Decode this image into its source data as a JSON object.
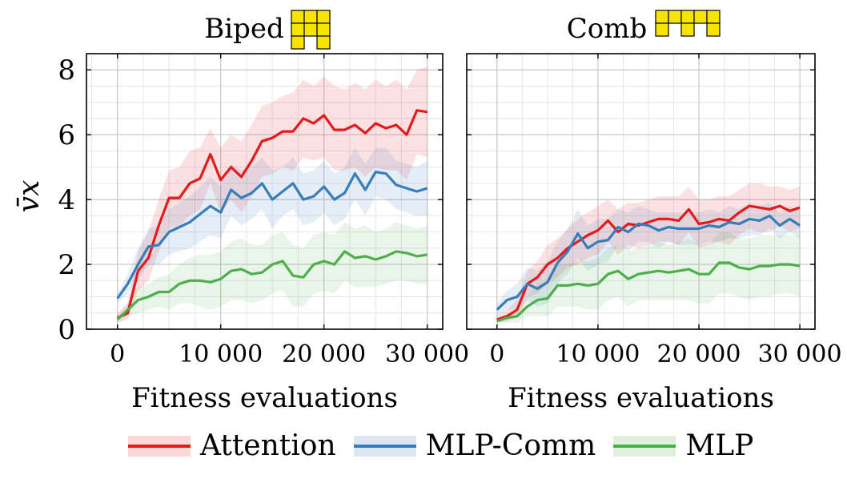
{
  "figure": {
    "ylabel": "v̄x",
    "series_styles": [
      {
        "name": "Attention",
        "color": "#e41a1c"
      },
      {
        "name": "MLP-Comm",
        "color": "#377eb8"
      },
      {
        "name": "MLP",
        "color": "#4daf4a"
      }
    ],
    "legend_position": "bottom-center",
    "grid": true,
    "robot_icon_color": "#f5e400"
  },
  "chart_data": [
    {
      "type": "line",
      "title": "Biped",
      "icon": "biped-grid-icon",
      "xlabel": "Fitness evaluations",
      "ylabel": "v̄x",
      "xlim": [
        -3000,
        31500
      ],
      "ylim": [
        0,
        8.5
      ],
      "xticks": [
        "0",
        "10 000",
        "20 000",
        "30 000"
      ],
      "yticks": [
        "0",
        "2",
        "4",
        "6",
        "8"
      ],
      "x": [
        0,
        1000,
        2000,
        3000,
        4000,
        5000,
        6000,
        7000,
        8000,
        9000,
        10000,
        11000,
        12000,
        13000,
        14000,
        15000,
        16000,
        17000,
        18000,
        19000,
        20000,
        21000,
        22000,
        23000,
        24000,
        25000,
        26000,
        27000,
        28000,
        29000,
        30000
      ],
      "series": [
        {
          "name": "Attention",
          "mean": [
            0.35,
            0.5,
            1.8,
            2.2,
            3.2,
            4.05,
            4.05,
            4.5,
            4.65,
            5.4,
            4.6,
            5.0,
            4.7,
            5.2,
            5.8,
            5.9,
            6.1,
            6.1,
            6.5,
            6.35,
            6.6,
            6.15,
            6.15,
            6.3,
            6.05,
            6.35,
            6.2,
            6.3,
            6.0,
            6.75,
            6.7
          ],
          "upper": [
            0.5,
            0.8,
            2.4,
            3.0,
            4.0,
            4.9,
            5.0,
            5.5,
            5.6,
            6.2,
            5.6,
            6.0,
            5.8,
            6.3,
            6.9,
            7.0,
            7.2,
            7.3,
            7.7,
            7.5,
            7.8,
            7.5,
            7.4,
            7.6,
            7.4,
            7.7,
            7.5,
            7.7,
            7.4,
            8.0,
            8.1
          ],
          "lower": [
            0.2,
            0.3,
            1.2,
            1.5,
            2.4,
            3.1,
            3.2,
            3.5,
            3.7,
            4.5,
            3.6,
            4.0,
            3.6,
            4.1,
            4.7,
            4.8,
            5.0,
            4.9,
            5.3,
            5.2,
            5.3,
            4.9,
            4.9,
            5.0,
            4.7,
            5.0,
            4.9,
            4.9,
            4.6,
            5.4,
            5.3
          ]
        },
        {
          "name": "MLP-Comm",
          "mean": [
            0.95,
            1.4,
            2.0,
            2.55,
            2.6,
            3.0,
            3.15,
            3.3,
            3.55,
            3.8,
            3.6,
            4.3,
            4.05,
            4.2,
            4.5,
            4.0,
            4.25,
            4.5,
            4.0,
            4.1,
            4.4,
            4.0,
            4.2,
            4.8,
            4.3,
            4.85,
            4.8,
            4.45,
            4.35,
            4.25,
            4.35
          ],
          "upper": [
            1.1,
            1.7,
            2.5,
            3.1,
            3.2,
            3.7,
            3.9,
            4.1,
            4.4,
            4.7,
            4.4,
            5.1,
            4.9,
            5.0,
            5.3,
            4.9,
            5.0,
            5.3,
            4.8,
            4.9,
            5.2,
            4.8,
            5.0,
            5.6,
            5.1,
            5.6,
            5.6,
            5.2,
            5.1,
            5.0,
            5.2
          ],
          "lower": [
            0.8,
            1.1,
            1.5,
            2.0,
            2.0,
            2.3,
            2.4,
            2.5,
            2.7,
            2.9,
            2.8,
            3.5,
            3.2,
            3.4,
            3.7,
            3.1,
            3.5,
            3.7,
            3.2,
            3.3,
            3.6,
            3.2,
            3.4,
            4.0,
            3.5,
            4.1,
            4.0,
            3.7,
            3.6,
            3.5,
            3.5
          ]
        },
        {
          "name": "MLP",
          "mean": [
            0.3,
            0.6,
            0.9,
            1.0,
            1.15,
            1.15,
            1.4,
            1.5,
            1.5,
            1.45,
            1.55,
            1.8,
            1.85,
            1.7,
            1.75,
            2.0,
            2.1,
            1.65,
            1.6,
            2.0,
            2.1,
            2.0,
            2.4,
            2.2,
            2.25,
            2.15,
            2.25,
            2.4,
            2.35,
            2.25,
            2.3
          ],
          "upper": [
            0.4,
            0.8,
            1.3,
            1.4,
            1.6,
            1.7,
            2.0,
            2.2,
            2.3,
            2.3,
            2.4,
            2.7,
            2.8,
            2.6,
            2.6,
            2.9,
            3.0,
            2.6,
            2.5,
            2.9,
            3.0,
            2.9,
            3.3,
            3.1,
            3.2,
            3.0,
            3.1,
            3.3,
            3.2,
            3.1,
            3.2
          ],
          "lower": [
            0.2,
            0.4,
            0.5,
            0.6,
            0.7,
            0.6,
            0.8,
            0.8,
            0.7,
            0.6,
            0.7,
            0.9,
            0.9,
            0.8,
            0.9,
            1.1,
            1.2,
            0.7,
            0.7,
            1.1,
            1.2,
            1.1,
            1.5,
            1.3,
            1.3,
            1.3,
            1.4,
            1.5,
            1.5,
            1.4,
            1.4
          ]
        }
      ]
    },
    {
      "type": "line",
      "title": "Comb",
      "icon": "comb-grid-icon",
      "xlabel": "Fitness evaluations",
      "ylabel": "",
      "xlim": [
        -3000,
        31500
      ],
      "ylim": [
        0,
        8.5
      ],
      "xticks": [
        "0",
        "10 000",
        "20 000",
        "30 000"
      ],
      "yticks": [],
      "x": [
        0,
        1000,
        2000,
        3000,
        4000,
        5000,
        6000,
        7000,
        8000,
        9000,
        10000,
        11000,
        12000,
        13000,
        14000,
        15000,
        16000,
        17000,
        18000,
        19000,
        20000,
        21000,
        22000,
        23000,
        24000,
        25000,
        26000,
        27000,
        28000,
        29000,
        30000
      ],
      "series": [
        {
          "name": "Attention",
          "mean": [
            0.3,
            0.4,
            0.6,
            1.4,
            1.6,
            2.0,
            2.2,
            2.5,
            2.7,
            2.9,
            3.05,
            3.35,
            3.0,
            3.25,
            3.2,
            3.3,
            3.4,
            3.4,
            3.35,
            3.7,
            3.25,
            3.3,
            3.4,
            3.35,
            3.6,
            3.8,
            3.75,
            3.7,
            3.8,
            3.65,
            3.75
          ],
          "upper": [
            0.4,
            0.6,
            0.9,
            1.8,
            2.1,
            2.6,
            2.8,
            3.1,
            3.4,
            3.6,
            3.8,
            4.0,
            3.7,
            3.9,
            3.9,
            4.0,
            4.1,
            4.1,
            4.1,
            4.4,
            4.0,
            4.0,
            4.1,
            4.1,
            4.3,
            4.5,
            4.5,
            4.4,
            4.4,
            4.3,
            4.4
          ],
          "lower": [
            0.2,
            0.25,
            0.35,
            1.0,
            1.1,
            1.4,
            1.6,
            1.9,
            2.0,
            2.2,
            2.3,
            2.7,
            2.3,
            2.6,
            2.5,
            2.6,
            2.7,
            2.7,
            2.6,
            3.0,
            2.5,
            2.6,
            2.7,
            2.6,
            2.9,
            3.1,
            3.0,
            3.0,
            3.2,
            3.0,
            3.1
          ]
        },
        {
          "name": "MLP-Comm",
          "mean": [
            0.6,
            0.9,
            1.0,
            1.4,
            1.25,
            1.45,
            2.05,
            2.4,
            2.95,
            2.5,
            2.7,
            2.75,
            3.15,
            3.0,
            3.25,
            3.2,
            3.05,
            3.15,
            3.1,
            3.1,
            3.1,
            3.2,
            3.15,
            3.3,
            3.25,
            3.4,
            3.35,
            3.5,
            3.2,
            3.4,
            3.2
          ],
          "upper": [
            0.8,
            1.2,
            1.4,
            1.9,
            1.8,
            2.1,
            2.7,
            3.1,
            3.7,
            3.2,
            3.4,
            3.4,
            3.7,
            3.6,
            3.8,
            3.7,
            3.6,
            3.6,
            3.6,
            3.6,
            3.6,
            3.7,
            3.6,
            3.8,
            3.7,
            3.9,
            3.8,
            3.9,
            3.6,
            3.8,
            3.6
          ],
          "lower": [
            0.4,
            0.6,
            0.6,
            0.9,
            0.7,
            0.8,
            1.4,
            1.7,
            2.2,
            1.8,
            2.0,
            2.1,
            2.6,
            2.4,
            2.7,
            2.7,
            2.5,
            2.7,
            2.6,
            2.6,
            2.6,
            2.7,
            2.7,
            2.8,
            2.8,
            2.9,
            2.9,
            3.1,
            2.8,
            3.0,
            2.8
          ]
        },
        {
          "name": "MLP",
          "mean": [
            0.25,
            0.35,
            0.4,
            0.7,
            0.9,
            0.95,
            1.35,
            1.35,
            1.4,
            1.35,
            1.4,
            1.7,
            1.8,
            1.55,
            1.7,
            1.75,
            1.8,
            1.75,
            1.8,
            1.85,
            1.7,
            1.7,
            2.05,
            2.05,
            1.9,
            1.85,
            1.95,
            1.95,
            2.0,
            2.0,
            1.95
          ],
          "upper": [
            0.3,
            0.5,
            0.6,
            1.0,
            1.4,
            1.5,
            2.0,
            2.0,
            2.1,
            2.1,
            2.2,
            2.5,
            2.6,
            2.4,
            2.5,
            2.6,
            2.7,
            2.6,
            2.7,
            2.8,
            2.6,
            2.6,
            3.0,
            3.0,
            2.8,
            2.8,
            2.9,
            2.9,
            2.9,
            2.9,
            2.9
          ],
          "lower": [
            0.2,
            0.2,
            0.2,
            0.4,
            0.4,
            0.4,
            0.7,
            0.7,
            0.7,
            0.6,
            0.6,
            0.9,
            1.0,
            0.7,
            0.9,
            0.9,
            0.9,
            0.9,
            0.9,
            0.9,
            0.8,
            0.8,
            1.1,
            1.1,
            1.0,
            0.9,
            1.0,
            1.0,
            1.1,
            1.1,
            1.0
          ]
        }
      ]
    }
  ],
  "legend": {
    "items": [
      {
        "label": "Attention"
      },
      {
        "label": "MLP-Comm"
      },
      {
        "label": "MLP"
      }
    ]
  }
}
